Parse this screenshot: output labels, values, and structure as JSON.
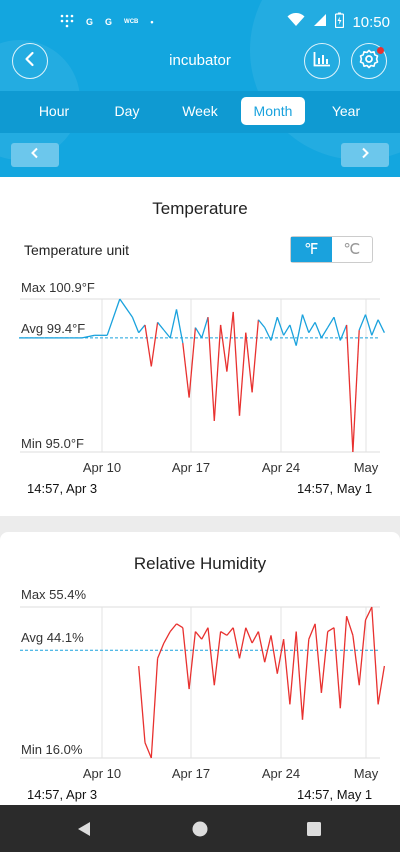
{
  "status_bar": {
    "left_items": [
      "G",
      "G",
      "WCB",
      "•"
    ],
    "time": "10:50",
    "icons": [
      "wifi-icon",
      "signal-icon",
      "battery-charging-icon"
    ]
  },
  "header": {
    "title": "incubator",
    "back_icon": "chevron-left-icon",
    "stats_icon": "bar-chart-icon",
    "settings_icon": "gear-icon",
    "notification_color": "#e8312f"
  },
  "tabs": [
    {
      "label": "Hour",
      "active": false
    },
    {
      "label": "Day",
      "active": false
    },
    {
      "label": "Week",
      "active": false
    },
    {
      "label": "Month",
      "active": true
    },
    {
      "label": "Year",
      "active": false
    }
  ],
  "temperature": {
    "title": "Temperature",
    "unit_label": "Temperature unit",
    "unit_f": "℉",
    "unit_c": "℃",
    "max_label": "Max 100.9°F",
    "avg_label": "Avg 99.4°F",
    "min_label": "Min 95.0°F",
    "x_ticks": [
      "Apr 10",
      "Apr 17",
      "Apr 24",
      "May"
    ],
    "start_time": "14:57,  Apr 3",
    "end_time": "14:57,  May 1"
  },
  "humidity": {
    "title": "Relative Humidity",
    "max_label": "Max 55.4%",
    "avg_label": "Avg 44.1%",
    "min_label": "Min 16.0%",
    "x_ticks": [
      "Apr 10",
      "Apr 17",
      "Apr 24",
      "May"
    ],
    "start_time": "14:57,  Apr 3",
    "end_time": "14:57,  May 1"
  },
  "colors": {
    "header_blue": "#13a6df",
    "series_blue": "#1aa2dd",
    "series_red": "#e8312f"
  },
  "chart_data": [
    {
      "type": "line",
      "title": "Temperature",
      "ylabel": "°F",
      "ylim": [
        95.0,
        100.9
      ],
      "avg": 99.4,
      "x_ticks": [
        "Apr 10",
        "Apr 17",
        "Apr 24",
        "May"
      ],
      "series": [
        {
          "x_days": [
            0,
            1,
            2,
            3,
            4,
            5,
            6,
            7,
            8,
            9,
            9.5,
            10,
            10.5,
            11,
            11.5,
            12,
            12.5,
            13,
            13.5,
            14,
            14.5,
            15,
            15.5,
            16,
            16.5,
            17,
            17.5,
            18,
            18.5,
            19,
            19.5,
            20,
            20.5,
            21,
            21.5,
            22,
            22.5,
            23,
            23.5,
            24,
            24.5,
            25,
            25.5,
            26,
            26.5,
            27,
            27.5,
            28,
            28.5,
            29
          ],
          "values": [
            99.4,
            99.4,
            99.4,
            99.4,
            99.4,
            99.4,
            99.5,
            99.5,
            100.9,
            100.2,
            99.6,
            99.9,
            98.3,
            100.0,
            99.7,
            99.4,
            100.5,
            99.2,
            97.1,
            99.8,
            99.4,
            100.2,
            96.2,
            99.9,
            98.1,
            100.4,
            96.4,
            99.6,
            97.3,
            100.1,
            99.8,
            99.3,
            100.2,
            99.5,
            99.9,
            99.1,
            100.3,
            99.6,
            100.0,
            99.4,
            99.8,
            100.2,
            99.3,
            99.9,
            95.0,
            99.7,
            100.3,
            99.5,
            100.1,
            99.6
          ]
        }
      ]
    },
    {
      "type": "line",
      "title": "Relative Humidity",
      "ylabel": "%",
      "ylim": [
        16.0,
        55.4
      ],
      "avg": 44.1,
      "x_ticks": [
        "Apr 10",
        "Apr 17",
        "Apr 24",
        "May"
      ],
      "series": [
        {
          "x_days": [
            9.5,
            10,
            10.5,
            11,
            11.5,
            12,
            12.5,
            13,
            13.5,
            14,
            14.5,
            15,
            15.5,
            16,
            16.5,
            17,
            17.5,
            18,
            18.5,
            19,
            19.5,
            20,
            20.5,
            21,
            21.5,
            22,
            22.5,
            23,
            23.5,
            24,
            24.5,
            25,
            25.5,
            26,
            26.5,
            27,
            27.5,
            28,
            28.5,
            29
          ],
          "values": [
            40.0,
            20.0,
            16.0,
            42.0,
            46.0,
            49.0,
            51.0,
            50.0,
            34.0,
            49.0,
            47.0,
            50.0,
            35.0,
            49.0,
            48.0,
            50.0,
            42.0,
            50.0,
            46.0,
            49.0,
            41.0,
            48.0,
            38.0,
            47.0,
            30.0,
            49.0,
            26.0,
            47.0,
            51.0,
            33.0,
            49.0,
            50.0,
            29.0,
            53.0,
            48.0,
            35.0,
            52.0,
            55.4,
            30.0,
            40.0
          ]
        }
      ]
    }
  ]
}
